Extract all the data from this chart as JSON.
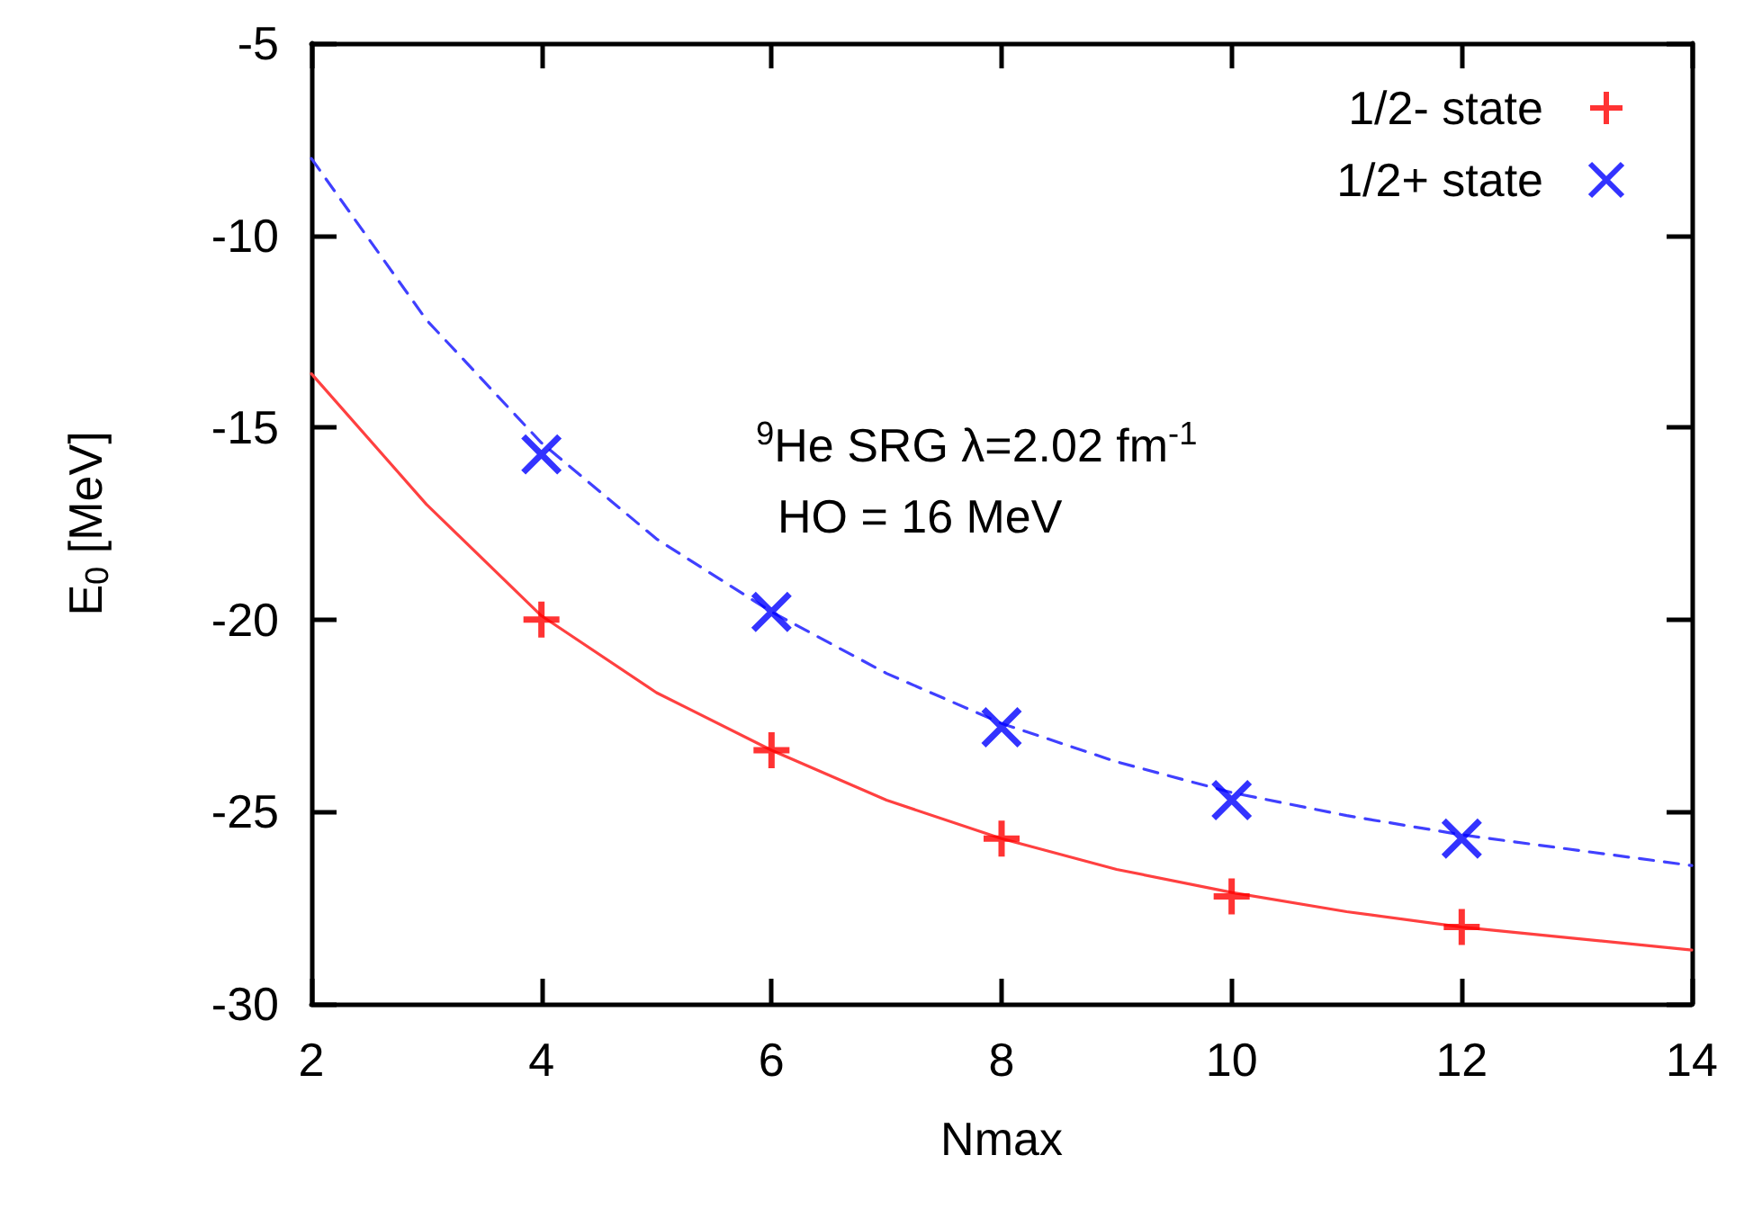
{
  "chart_data": {
    "type": "scatter",
    "xlabel": "Nmax",
    "ylabel": "E$_{0}$ [MeV]",
    "annotations": [
      "$^{9}$He SRG λ=2.02 fm$^{-1}$",
      "HO = 16 MeV"
    ],
    "xlim": [
      2,
      14
    ],
    "xticks": [
      2,
      4,
      6,
      8,
      10,
      12,
      14
    ],
    "ylim": [
      -30,
      -5
    ],
    "yticks": [
      -30,
      -25,
      -20,
      -15,
      -10,
      -5
    ],
    "grid": false,
    "legend": "top right",
    "series": [
      {
        "type": "line",
        "color": "#ff4040",
        "line_style": "solid",
        "marker": "none",
        "x": [
          2,
          3,
          4,
          5,
          6,
          7,
          8,
          9,
          10,
          11,
          12,
          13,
          14
        ],
        "values": [
          -13.6,
          -17.0,
          -19.9,
          -21.9,
          -23.4,
          -24.7,
          -25.7,
          -26.5,
          -27.1,
          -27.6,
          -28.0,
          -28.3,
          -28.6
        ]
      },
      {
        "type": "line",
        "color": "#4040ff",
        "line_style": "dashed",
        "marker": "none",
        "x": [
          2,
          3,
          4,
          5,
          6,
          7,
          8,
          9,
          10,
          11,
          12,
          13,
          14
        ],
        "values": [
          -8.0,
          -12.2,
          -15.4,
          -17.9,
          -19.8,
          -21.4,
          -22.7,
          -23.7,
          -24.5,
          -25.1,
          -25.6,
          -26.0,
          -26.4
        ]
      },
      {
        "name": "1/2- state",
        "color": "#ff0000",
        "marker": "plus",
        "x": [
          4,
          6,
          8,
          10,
          12
        ],
        "values": [
          -20.0,
          -23.4,
          -25.7,
          -27.2,
          -28.0
        ]
      },
      {
        "name": "1/2+ state",
        "color": "#0000ff",
        "marker": "cross",
        "x": [
          4,
          6,
          8,
          10,
          12
        ],
        "values": [
          -15.7,
          -19.8,
          -22.8,
          -24.7,
          -25.7
        ]
      }
    ]
  }
}
